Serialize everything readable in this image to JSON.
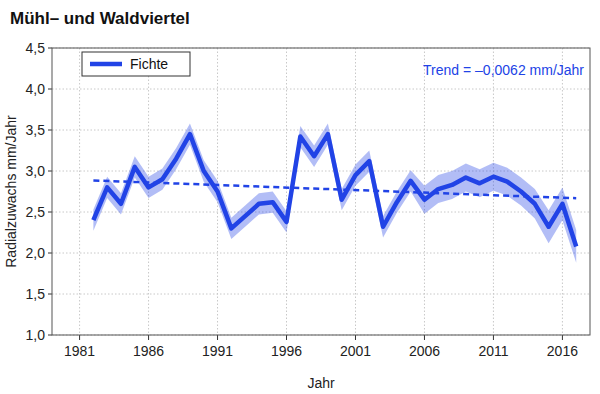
{
  "chart_data": {
    "type": "line",
    "title": "Mühl– und Waldviertel",
    "x_label": "Jahr",
    "y_label": "Radialzuwachs mm/Jahr",
    "x": [
      1982,
      1983,
      1984,
      1985,
      1986,
      1987,
      1988,
      1989,
      1990,
      1991,
      1992,
      1993,
      1994,
      1995,
      1996,
      1997,
      1998,
      1999,
      2000,
      2001,
      2002,
      2003,
      2004,
      2005,
      2006,
      2007,
      2008,
      2009,
      2010,
      2011,
      2012,
      2013,
      2014,
      2015,
      2016,
      2017
    ],
    "series": [
      {
        "name": "Fichte",
        "color": "#2143e6",
        "values": [
          2.4,
          2.8,
          2.6,
          3.05,
          2.8,
          2.9,
          3.15,
          3.45,
          3.0,
          2.75,
          2.3,
          2.45,
          2.6,
          2.62,
          2.38,
          3.42,
          3.18,
          3.45,
          2.65,
          2.95,
          3.12,
          2.32,
          2.62,
          2.88,
          2.65,
          2.78,
          2.83,
          2.92,
          2.85,
          2.93,
          2.87,
          2.75,
          2.6,
          2.32,
          2.6,
          2.08
        ],
        "upper": [
          2.53,
          2.93,
          2.73,
          3.18,
          2.93,
          3.03,
          3.28,
          3.58,
          3.13,
          2.88,
          2.43,
          2.58,
          2.73,
          2.75,
          2.51,
          3.55,
          3.31,
          3.58,
          2.78,
          3.08,
          3.25,
          2.45,
          2.75,
          3.01,
          2.82,
          2.95,
          3.0,
          3.09,
          3.02,
          3.1,
          3.04,
          2.92,
          2.78,
          2.52,
          2.8,
          2.28
        ],
        "lower": [
          2.27,
          2.67,
          2.47,
          2.92,
          2.67,
          2.77,
          3.02,
          3.32,
          2.87,
          2.62,
          2.17,
          2.32,
          2.47,
          2.49,
          2.25,
          3.29,
          3.05,
          3.32,
          2.52,
          2.82,
          2.99,
          2.19,
          2.49,
          2.75,
          2.48,
          2.61,
          2.66,
          2.75,
          2.68,
          2.76,
          2.7,
          2.58,
          2.42,
          2.12,
          2.4,
          1.88
        ]
      }
    ],
    "trend": {
      "label": "Trend = –0,0062 mm/Jahr",
      "x": [
        1982,
        2017
      ],
      "values": [
        2.885,
        2.668
      ],
      "line_style": "dashed",
      "color": "#2143e6"
    },
    "xlim": [
      1979,
      2018
    ],
    "xticks": [
      1981,
      1986,
      1991,
      1996,
      2001,
      2006,
      2011,
      2016
    ],
    "ylim": [
      1,
      4.5
    ],
    "yticks": [
      {
        "value": 1,
        "label": "1,0"
      },
      {
        "value": 1.5,
        "label": "1,5"
      },
      {
        "value": 2,
        "label": "2,0"
      },
      {
        "value": 2.5,
        "label": "2,5"
      },
      {
        "value": 3,
        "label": "3,0"
      },
      {
        "value": 3.5,
        "label": "3,5"
      },
      {
        "value": 4,
        "label": "4,0"
      },
      {
        "value": 4.5,
        "label": "4,5"
      }
    ],
    "grid": true,
    "legend": "upper left"
  }
}
